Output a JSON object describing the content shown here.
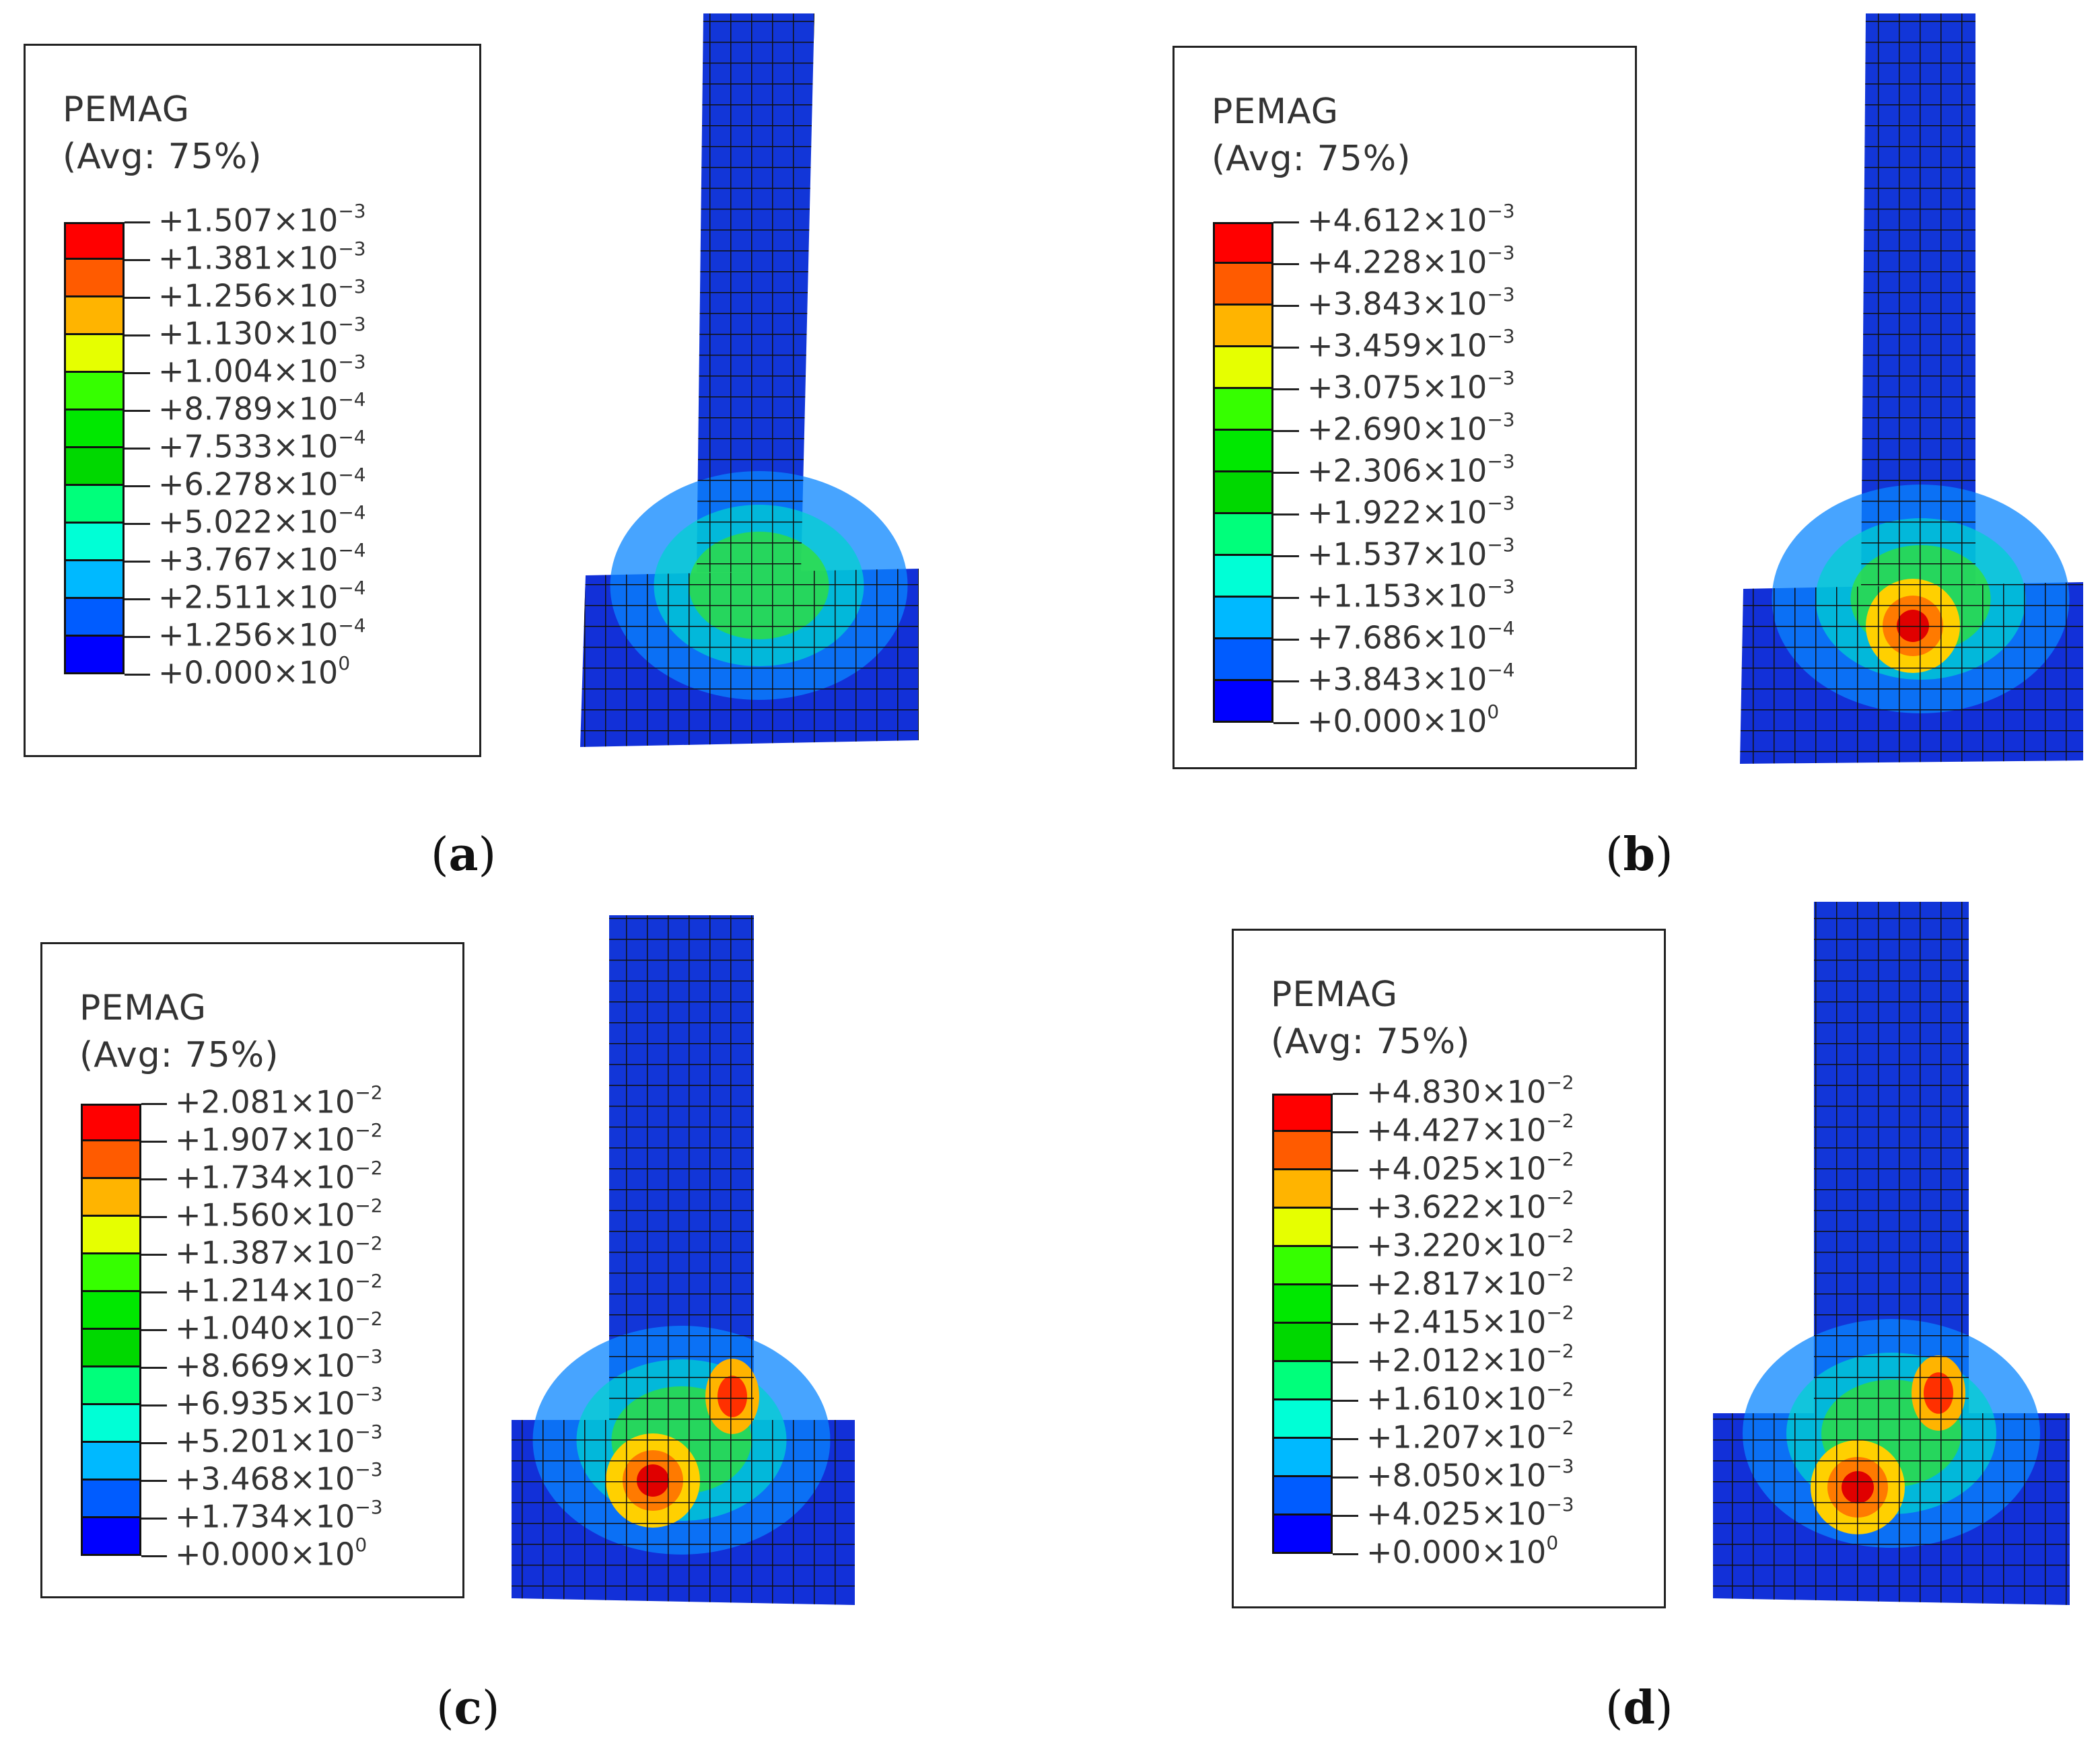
{
  "colors": [
    "#ff0000",
    "#ff5b00",
    "#ffb400",
    "#e6ff00",
    "#36ff00",
    "#00e800",
    "#00d800",
    "#00ff7b",
    "#00ffd6",
    "#00b9ff",
    "#005cff",
    "#0000ff"
  ],
  "panels": [
    {
      "caption_open": "(",
      "caption_letter": "a",
      "caption_close": ")",
      "legend": {
        "title": "PEMAG",
        "subtitle": "(Avg: 75%)",
        "labels": [
          {
            "m": "+1.507×10",
            "e": "−3"
          },
          {
            "m": "+1.381×10",
            "e": "−3"
          },
          {
            "m": "+1.256×10",
            "e": "−3"
          },
          {
            "m": "+1.130×10",
            "e": "−3"
          },
          {
            "m": "+1.004×10",
            "e": "−3"
          },
          {
            "m": "+8.789×10",
            "e": "−4"
          },
          {
            "m": "+7.533×10",
            "e": "−4"
          },
          {
            "m": "+6.278×10",
            "e": "−4"
          },
          {
            "m": "+5.022×10",
            "e": "−4"
          },
          {
            "m": "+3.767×10",
            "e": "−4"
          },
          {
            "m": "+2.511×10",
            "e": "−4"
          },
          {
            "m": "+1.256×10",
            "e": "−4"
          },
          {
            "m": "+0.000×10",
            "e": "0"
          }
        ]
      }
    },
    {
      "caption_open": "(",
      "caption_letter": "b",
      "caption_close": ")",
      "legend": {
        "title": "PEMAG",
        "subtitle": "(Avg: 75%)",
        "labels": [
          {
            "m": "+4.612×10",
            "e": "−3"
          },
          {
            "m": "+4.228×10",
            "e": "−3"
          },
          {
            "m": "+3.843×10",
            "e": "−3"
          },
          {
            "m": "+3.459×10",
            "e": "−3"
          },
          {
            "m": "+3.075×10",
            "e": "−3"
          },
          {
            "m": "+2.690×10",
            "e": "−3"
          },
          {
            "m": "+2.306×10",
            "e": "−3"
          },
          {
            "m": "+1.922×10",
            "e": "−3"
          },
          {
            "m": "+1.537×10",
            "e": "−3"
          },
          {
            "m": "+1.153×10",
            "e": "−3"
          },
          {
            "m": "+7.686×10",
            "e": "−4"
          },
          {
            "m": "+3.843×10",
            "e": "−4"
          },
          {
            "m": "+0.000×10",
            "e": "0"
          }
        ]
      }
    },
    {
      "caption_open": "(",
      "caption_letter": "c",
      "caption_close": ")",
      "legend": {
        "title": "PEMAG",
        "subtitle": "(Avg: 75%)",
        "labels": [
          {
            "m": "+2.081×10",
            "e": "−2"
          },
          {
            "m": "+1.907×10",
            "e": "−2"
          },
          {
            "m": "+1.734×10",
            "e": "−2"
          },
          {
            "m": "+1.560×10",
            "e": "−2"
          },
          {
            "m": "+1.387×10",
            "e": "−2"
          },
          {
            "m": "+1.214×10",
            "e": "−2"
          },
          {
            "m": "+1.040×10",
            "e": "−2"
          },
          {
            "m": "+8.669×10",
            "e": "−3"
          },
          {
            "m": "+6.935×10",
            "e": "−3"
          },
          {
            "m": "+5.201×10",
            "e": "−3"
          },
          {
            "m": "+3.468×10",
            "e": "−3"
          },
          {
            "m": "+1.734×10",
            "e": "−3"
          },
          {
            "m": "+0.000×10",
            "e": "0"
          }
        ]
      }
    },
    {
      "caption_open": "(",
      "caption_letter": "d",
      "caption_close": ")",
      "legend": {
        "title": "PEMAG",
        "subtitle": "(Avg: 75%)",
        "labels": [
          {
            "m": "+4.830×10",
            "e": "−2"
          },
          {
            "m": "+4.427×10",
            "e": "−2"
          },
          {
            "m": "+4.025×10",
            "e": "−2"
          },
          {
            "m": "+3.622×10",
            "e": "−2"
          },
          {
            "m": "+3.220×10",
            "e": "−2"
          },
          {
            "m": "+2.817×10",
            "e": "−2"
          },
          {
            "m": "+2.415×10",
            "e": "−2"
          },
          {
            "m": "+2.012×10",
            "e": "−2"
          },
          {
            "m": "+1.610×10",
            "e": "−2"
          },
          {
            "m": "+1.207×10",
            "e": "−2"
          },
          {
            "m": "+8.050×10",
            "e": "−3"
          },
          {
            "m": "+4.025×10",
            "e": "−3"
          },
          {
            "m": "+0.000×10",
            "e": "0"
          }
        ]
      }
    }
  ]
}
